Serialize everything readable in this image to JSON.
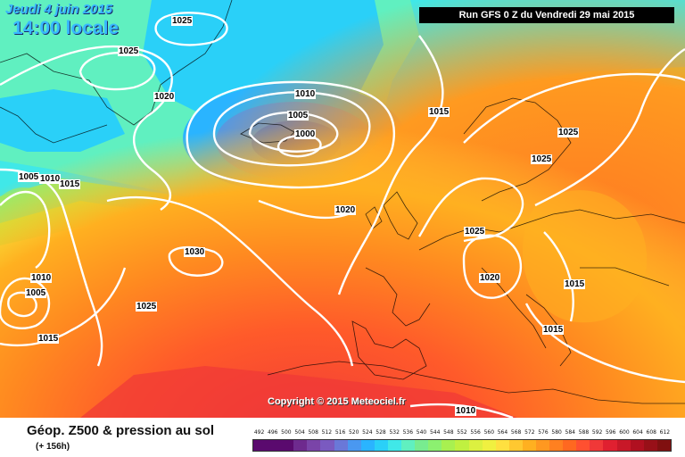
{
  "header": {
    "date": "Jeudi 4 juin 2015",
    "time": "14:00 locale",
    "run": "Run GFS 0 Z du Vendredi 29 mai 2015"
  },
  "copyright": "Copyright © 2015 Meteociel.fr",
  "isobar_labels": [
    "1025",
    "1025",
    "1020",
    "1010",
    "1005",
    "1000",
    "1015",
    "1025",
    "1025",
    "1005",
    "1010",
    "1015",
    "1020",
    "1025",
    "1030",
    "1010",
    "1005",
    "1025",
    "1015",
    "1020",
    "1015",
    "1015",
    "1010"
  ],
  "legend": {
    "title": "Géop. Z500 & pression au sol",
    "subtitle": "(+ 156h)",
    "scale": [
      "492",
      "496",
      "500",
      "504",
      "508",
      "512",
      "516",
      "520",
      "524",
      "528",
      "532",
      "536",
      "540",
      "544",
      "548",
      "552",
      "556",
      "560",
      "564",
      "568",
      "572",
      "576",
      "580",
      "584",
      "588",
      "592",
      "596",
      "600",
      "604",
      "608",
      "612"
    ],
    "colors": [
      "#5a0a6e",
      "#5a0a6e",
      "#5a0a6e",
      "#6e2a8e",
      "#7a44a8",
      "#7a5ac0",
      "#6a78d8",
      "#4a98f0",
      "#2ab4ff",
      "#2ad0f8",
      "#40e8e8",
      "#60f0c0",
      "#78ec90",
      "#8cf070",
      "#a8f050",
      "#c0f040",
      "#dcf040",
      "#f0f040",
      "#ffe040",
      "#ffc830",
      "#ffb020",
      "#ff9820",
      "#ff8020",
      "#ff6820",
      "#ff5030",
      "#f03838",
      "#e02030",
      "#c81828",
      "#b01020",
      "#981018",
      "#801010"
    ]
  }
}
